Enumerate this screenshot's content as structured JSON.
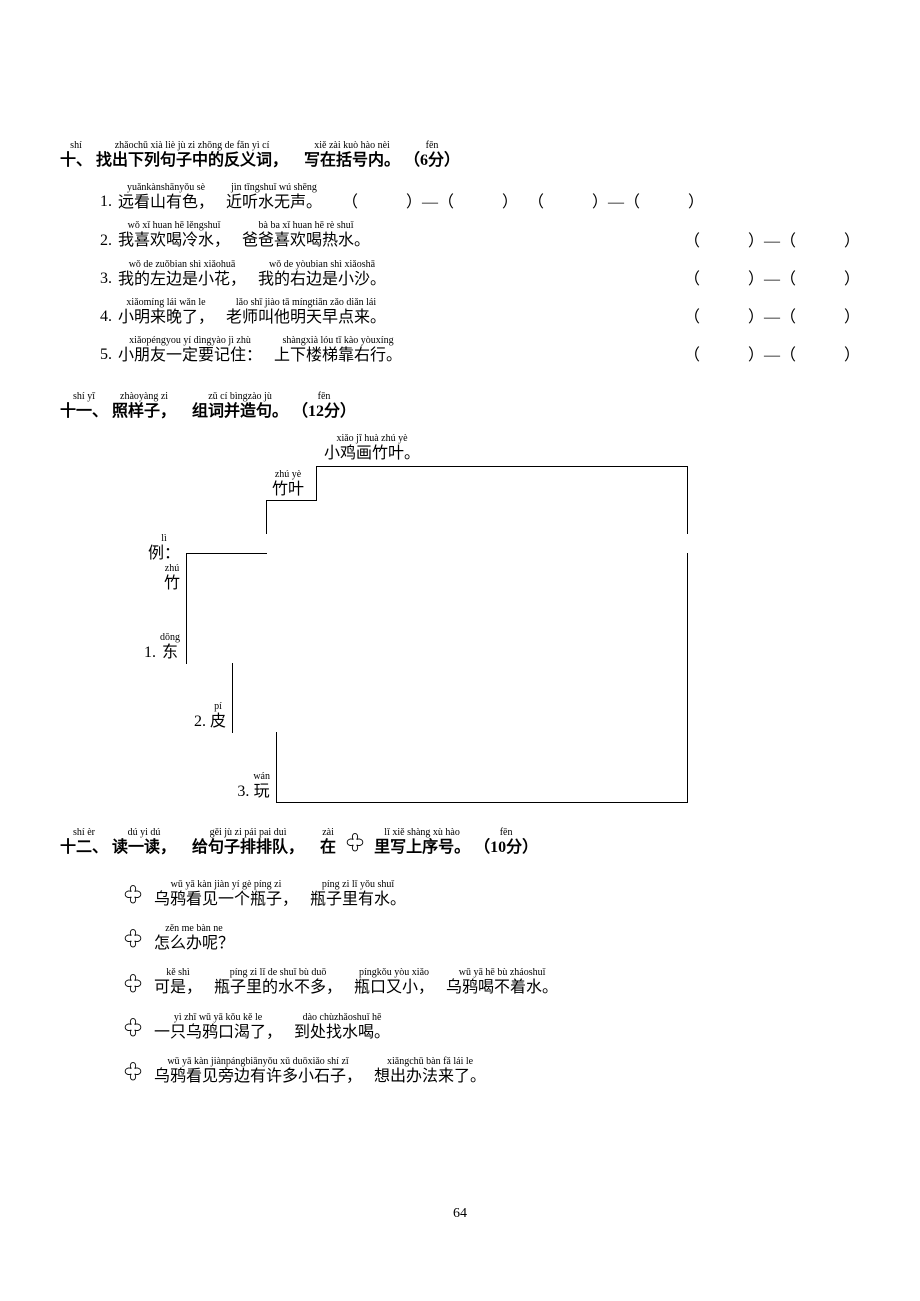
{
  "pageNumber": "64",
  "section10": {
    "titlePinyin": [
      "shí",
      "zhǎochū xià liè jù zi zhōng de fǎn yì cí",
      "xiě zài kuò hào nèi",
      "fēn"
    ],
    "titleHanzi": [
      "十、",
      "找出下列句子中的反义词，",
      "写在括号内。",
      "（6分）"
    ],
    "items": [
      {
        "num": "1.",
        "parts": [
          {
            "py": "yuǎnkànshānyǒu sè",
            "hz": "远看山有色，"
          },
          {
            "py": "jìn tīngshuǐ wú shēng",
            "hz": "近听水无声。"
          }
        ],
        "parenCount": 4
      },
      {
        "num": "2.",
        "parts": [
          {
            "py": "wǒ xǐ huan hē lěngshuǐ",
            "hz": "我喜欢喝冷水，"
          },
          {
            "py": "bà ba xǐ huan hē rè shuǐ",
            "hz": "爸爸喜欢喝热水。"
          }
        ],
        "parenCount": 2
      },
      {
        "num": "3.",
        "parts": [
          {
            "py": "wǒ de zuǒbian shì xiǎohuā",
            "hz": "我的左边是小花，"
          },
          {
            "py": "wǒ de yòubian shì xiǎoshā",
            "hz": "我的右边是小沙。"
          }
        ],
        "parenCount": 2
      },
      {
        "num": "4.",
        "parts": [
          {
            "py": "xiǎomíng lái wǎn le",
            "hz": "小明来晚了，"
          },
          {
            "py": "lǎo shī jiào tā míngtiān zǎo diǎn lái",
            "hz": "老师叫他明天早点来。"
          }
        ],
        "parenCount": 2
      },
      {
        "num": "5.",
        "parts": [
          {
            "py": "xiǎopéngyou yí dìngyào jì zhù",
            "hz": "小朋友一定要记住："
          },
          {
            "py": "shàngxià lóu tī kào yòuxíng",
            "hz": "上下楼梯靠右行。"
          }
        ],
        "parenCount": 2
      }
    ]
  },
  "section11": {
    "titlePinyin": [
      "shí yī",
      "zhàoyàng zi",
      "zǔ cí bìngzào jù",
      "fēn"
    ],
    "titleHanzi": [
      "十一、",
      "照样子，",
      "组词并造句。",
      "（12分）"
    ],
    "example": {
      "sentence": {
        "py": "xiǎo jī huà zhú yè",
        "hz": "小鸡画竹叶。"
      },
      "word": {
        "py": "zhú yè",
        "hz": "竹叶"
      },
      "labelPy": "lì",
      "labelHz": "例：",
      "charPy": "zhú",
      "charHz": "竹"
    },
    "items": [
      {
        "num": "1.",
        "py": "dōng",
        "hz": "东"
      },
      {
        "num": "2.",
        "py": "pí",
        "hz": "皮"
      },
      {
        "num": "3.",
        "py": "wán",
        "hz": "玩"
      }
    ],
    "stairGeometry": {
      "indents": [
        170,
        120,
        40,
        40,
        86,
        130,
        175
      ],
      "widths": [
        370,
        420,
        500,
        500,
        454,
        410,
        365
      ],
      "heights": [
        34,
        34,
        42,
        70,
        70,
        70,
        46
      ]
    }
  },
  "section12": {
    "titlePinyin": [
      "shí èr",
      "dú yi dú",
      "gěi jù zi pái pai duì",
      "zài",
      "lǐ xiě shàng xù hào",
      "fēn"
    ],
    "titleHanzi": [
      "十二、",
      "读一读，",
      "给句子排排队，",
      "在",
      "里写上序号。",
      "（10分）"
    ],
    "items": [
      {
        "parts": [
          {
            "py": "wū yā kàn jiàn yí gè píng zi",
            "hz": "乌鸦看见一个瓶子，"
          },
          {
            "py": "píng zi lǐ yǒu shuǐ",
            "hz": "瓶子里有水。"
          }
        ]
      },
      {
        "parts": [
          {
            "py": "zěn me bàn ne",
            "hz": "怎么办呢？"
          }
        ]
      },
      {
        "parts": [
          {
            "py": "kě shì",
            "hz": "可是，"
          },
          {
            "py": "píng zi lǐ de shuǐ bù duō",
            "hz": "瓶子里的水不多，"
          },
          {
            "py": "píngkǒu yòu xiǎo",
            "hz": "瓶口又小，"
          },
          {
            "py": "wū yā hē bù zháoshuǐ",
            "hz": "乌鸦喝不着水。"
          }
        ]
      },
      {
        "parts": [
          {
            "py": "yì zhī wū yā kǒu kě le",
            "hz": "一只乌鸦口渴了，"
          },
          {
            "py": "dào chùzhǎoshuǐ hē",
            "hz": "到处找水喝。"
          }
        ]
      },
      {
        "parts": [
          {
            "py": "wū yā kàn jiànpángbiānyǒu xǔ duōxiǎo shí zǐ",
            "hz": "乌鸦看见旁边有许多小石子，"
          },
          {
            "py": "xiǎngchū bàn fǎ lái le",
            "hz": "想出办法来了。"
          }
        ]
      }
    ]
  }
}
